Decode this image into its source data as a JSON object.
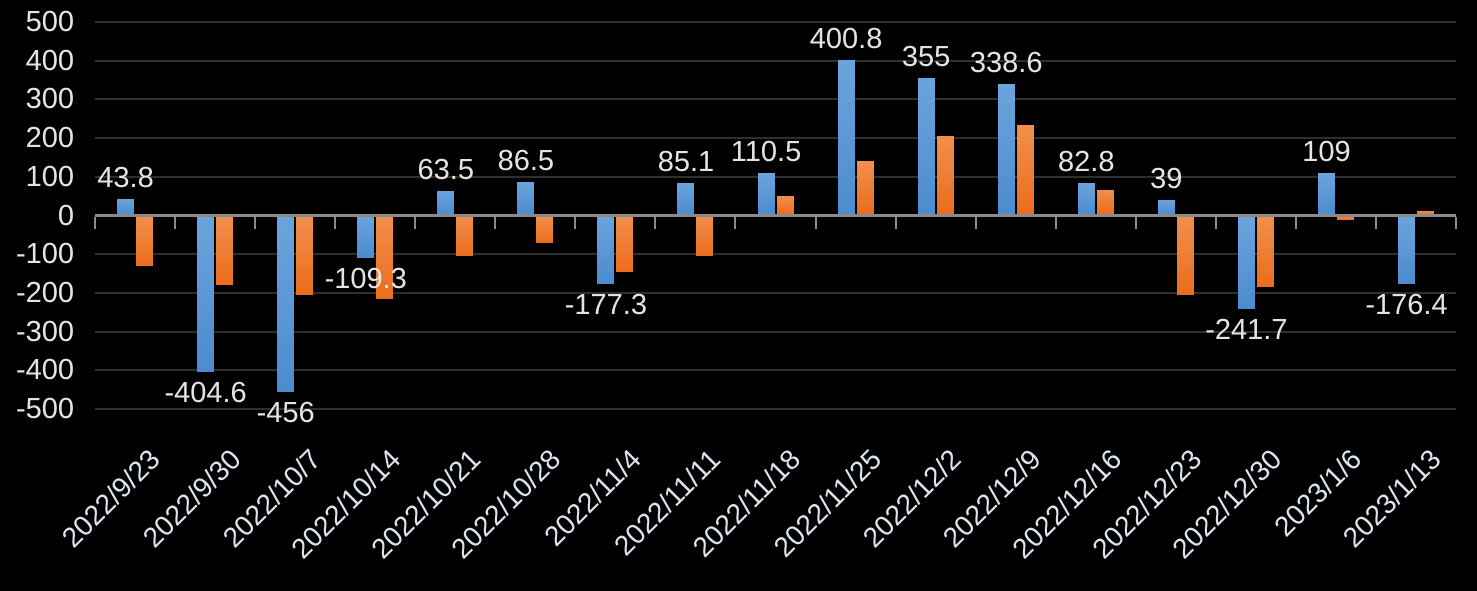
{
  "chart_data": {
    "type": "bar",
    "title": "",
    "legend_position": "none",
    "grid": true,
    "background_color": "#000000",
    "text_color": "#e4e4e4",
    "gridline_color": "#2e2e2e",
    "axis_color": "#8a8a8a",
    "categories": [
      "2022/9/23",
      "2022/9/30",
      "2022/10/7",
      "2022/10/14",
      "2022/10/21",
      "2022/10/28",
      "2022/11/4",
      "2022/11/11",
      "2022/11/18",
      "2022/11/25",
      "2022/12/2",
      "2022/12/9",
      "2022/12/16",
      "2022/12/23",
      "2022/12/30",
      "2023/1/6",
      "2023/1/13"
    ],
    "series": [
      {
        "name": "blue",
        "color": "#5b9bd5",
        "values": [
          43.8,
          -404.6,
          -456,
          -109.3,
          63.5,
          86.5,
          -177.3,
          85.1,
          110.5,
          400.8,
          355,
          338.6,
          82.8,
          39,
          -241.7,
          109,
          -176.4
        ],
        "data_labels": [
          "43.8",
          "-404.6",
          "-456",
          "-109.3",
          "63.5",
          "86.5",
          "-177.3",
          "85.1",
          "110.5",
          "400.8",
          "355",
          "338.6",
          "82.8",
          "39",
          "-241.7",
          "109",
          "-176.4"
        ]
      },
      {
        "name": "orange",
        "color": "#ed7d31",
        "values": [
          -130,
          -180,
          -205,
          -215,
          -105,
          -70,
          -145,
          -105,
          50,
          140,
          205,
          235,
          65,
          -205,
          -185,
          -12,
          12
        ],
        "data_labels": []
      }
    ],
    "y_axis": {
      "min": -500,
      "max": 500,
      "step": 100,
      "tick_labels": [
        "500",
        "400",
        "300",
        "200",
        "100",
        "0",
        "-100",
        "-200",
        "-300",
        "-400",
        "-500"
      ]
    },
    "x_axis": {
      "label_rotation_deg": 45
    }
  }
}
